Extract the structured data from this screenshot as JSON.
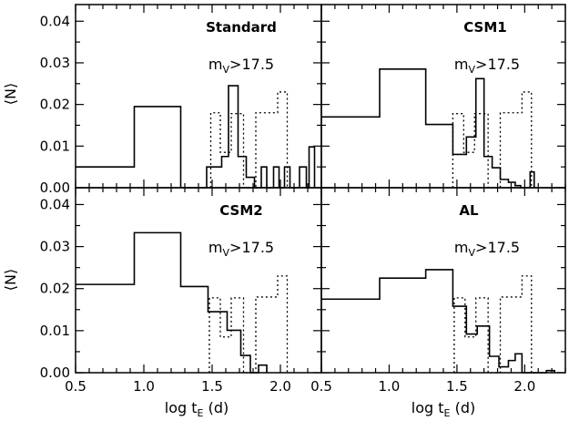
{
  "chart_data": [
    {
      "type": "histogram",
      "panel": "Standard",
      "title": "Standard",
      "condition": {
        "main": "m",
        "sub": "V",
        "rest": ">17.5"
      },
      "xlim": [
        0.5,
        2.3
      ],
      "ylim": [
        0,
        0.044
      ],
      "solid": [
        [
          0.5,
          0.005
        ],
        [
          0.93,
          0.0195
        ],
        [
          1.27,
          0.0
        ],
        [
          1.46,
          0.005
        ],
        [
          1.57,
          0.0075
        ],
        [
          1.62,
          0.0245
        ],
        [
          1.69,
          0.0075
        ],
        [
          1.75,
          0.0025
        ],
        [
          1.81,
          0.0
        ],
        [
          1.86,
          0.005
        ],
        [
          1.9,
          0.0
        ],
        [
          1.95,
          0.005
        ],
        [
          1.99,
          0.0
        ],
        [
          2.03,
          0.005
        ],
        [
          2.07,
          0.0
        ],
        [
          2.14,
          0.005
        ],
        [
          2.19,
          0.0
        ],
        [
          2.21,
          0.0098
        ],
        [
          2.25,
          0.0
        ]
      ],
      "dotted": [
        [
          1.49,
          0.018
        ],
        [
          1.56,
          0.0085
        ],
        [
          1.64,
          0.0178
        ],
        [
          1.73,
          0.0
        ],
        [
          1.82,
          0.018
        ],
        [
          1.98,
          0.023
        ],
        [
          2.05,
          0.0
        ]
      ]
    },
    {
      "type": "histogram",
      "panel": "CSM1",
      "title": "CSM1",
      "condition": {
        "main": "m",
        "sub": "V",
        "rest": ">17.5"
      },
      "xlim": [
        0.5,
        2.3
      ],
      "ylim": [
        0,
        0.044
      ],
      "solid": [
        [
          0.5,
          0.017
        ],
        [
          0.93,
          0.0285
        ],
        [
          1.27,
          0.0152
        ],
        [
          1.47,
          0.008
        ],
        [
          1.57,
          0.0122
        ],
        [
          1.64,
          0.0262
        ],
        [
          1.7,
          0.0075
        ],
        [
          1.76,
          0.0048
        ],
        [
          1.82,
          0.002
        ],
        [
          1.88,
          0.0013
        ],
        [
          1.93,
          0.0005
        ],
        [
          1.97,
          0.0
        ],
        [
          2.04,
          0.0038
        ],
        [
          2.07,
          0.0
        ]
      ],
      "dotted": [
        [
          1.47,
          0.0178
        ],
        [
          1.55,
          0.0085
        ],
        [
          1.63,
          0.0178
        ],
        [
          1.73,
          0.0
        ],
        [
          1.82,
          0.018
        ],
        [
          1.98,
          0.023
        ],
        [
          2.05,
          0.0
        ]
      ]
    },
    {
      "type": "histogram",
      "panel": "CSM2",
      "title": "CSM2",
      "condition": {
        "main": "m",
        "sub": "V",
        "rest": ">17.5"
      },
      "xlim": [
        0.5,
        2.3
      ],
      "ylim": [
        0,
        0.044
      ],
      "solid": [
        [
          0.5,
          0.021
        ],
        [
          0.93,
          0.0333
        ],
        [
          1.27,
          0.0205
        ],
        [
          1.47,
          0.0145
        ],
        [
          1.61,
          0.0101
        ],
        [
          1.71,
          0.0041
        ],
        [
          1.78,
          0.0
        ],
        [
          1.84,
          0.0018
        ],
        [
          1.9,
          0.0
        ]
      ],
      "dotted": [
        [
          1.48,
          0.0178
        ],
        [
          1.56,
          0.0085
        ],
        [
          1.64,
          0.0178
        ],
        [
          1.73,
          0.0
        ],
        [
          1.82,
          0.018
        ],
        [
          1.98,
          0.023
        ],
        [
          2.05,
          0.0
        ]
      ]
    },
    {
      "type": "histogram",
      "panel": "AL",
      "title": "AL",
      "condition": {
        "main": "m",
        "sub": "V",
        "rest": ">17.5"
      },
      "xlim": [
        0.5,
        2.3
      ],
      "ylim": [
        0,
        0.044
      ],
      "solid": [
        [
          0.5,
          0.0175
        ],
        [
          0.93,
          0.0225
        ],
        [
          1.27,
          0.0245
        ],
        [
          1.47,
          0.0158
        ],
        [
          1.57,
          0.0092
        ],
        [
          1.65,
          0.0111
        ],
        [
          1.74,
          0.0039
        ],
        [
          1.81,
          0.0014
        ],
        [
          1.88,
          0.0029
        ],
        [
          1.93,
          0.0045
        ],
        [
          1.98,
          0.0
        ],
        [
          2.16,
          0.0005
        ],
        [
          2.22,
          0.0
        ]
      ],
      "dotted": [
        [
          1.48,
          0.0178
        ],
        [
          1.56,
          0.0085
        ],
        [
          1.64,
          0.0178
        ],
        [
          1.73,
          0.0
        ],
        [
          1.82,
          0.018
        ],
        [
          1.98,
          0.023
        ],
        [
          2.05,
          0.0
        ]
      ]
    }
  ],
  "axes": {
    "y_ticks": [
      "0.00",
      "0.01",
      "0.02",
      "0.03",
      "0.04"
    ],
    "x_ticks": [
      "0.5",
      "1.0",
      "1.5",
      "2.0"
    ],
    "x_ticks_right": [
      "0.5",
      "1.0",
      "1.5",
      "2.0"
    ],
    "ylabel": "⟨N⟩",
    "xlabel": {
      "main": "log t",
      "sub": "E",
      "rest": " (d)"
    }
  }
}
